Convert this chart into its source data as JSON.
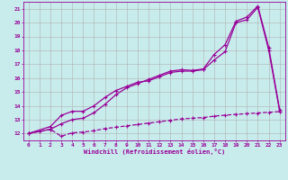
{
  "bg_color": "#c8ecec",
  "line_color": "#990099",
  "grid_color": "#b0b0b0",
  "xlabel": "Windchill (Refroidissement éolien,°C)",
  "xlim": [
    -0.5,
    23.5
  ],
  "ylim": [
    11.5,
    21.5
  ],
  "yticks": [
    12,
    13,
    14,
    15,
    16,
    17,
    18,
    19,
    20,
    21
  ],
  "xticks": [
    0,
    1,
    2,
    3,
    4,
    5,
    6,
    7,
    8,
    9,
    10,
    11,
    12,
    13,
    14,
    15,
    16,
    17,
    18,
    19,
    20,
    21,
    22,
    23
  ],
  "line1_x": [
    0,
    1,
    2,
    3,
    4,
    5,
    6,
    7,
    8,
    9,
    10,
    11,
    12,
    13,
    14,
    15,
    16,
    17,
    18,
    19,
    20,
    21,
    22,
    23
  ],
  "line1_y": [
    12.0,
    12.15,
    12.3,
    11.8,
    12.05,
    12.1,
    12.2,
    12.35,
    12.45,
    12.55,
    12.65,
    12.75,
    12.85,
    12.95,
    13.05,
    13.1,
    13.15,
    13.25,
    13.32,
    13.38,
    13.43,
    13.48,
    13.53,
    13.58
  ],
  "line2_x": [
    0,
    2,
    3,
    4,
    5,
    6,
    7,
    8,
    9,
    10,
    11,
    12,
    13,
    14,
    15,
    16,
    17,
    18,
    19,
    20,
    21,
    22,
    23
  ],
  "line2_y": [
    12.0,
    12.5,
    13.3,
    13.6,
    13.6,
    14.0,
    14.6,
    15.1,
    15.4,
    15.7,
    15.8,
    16.1,
    16.4,
    16.5,
    16.5,
    16.6,
    17.3,
    17.9,
    20.0,
    20.2,
    21.1,
    18.0,
    13.6
  ],
  "line3_x": [
    0,
    2,
    3,
    4,
    5,
    6,
    7,
    8,
    9,
    10,
    11,
    12,
    13,
    14,
    15,
    16,
    17,
    18,
    19,
    20,
    21,
    22,
    23
  ],
  "line3_y": [
    12.0,
    12.3,
    12.7,
    13.0,
    13.1,
    13.5,
    14.1,
    14.8,
    15.3,
    15.6,
    15.9,
    16.2,
    16.5,
    16.6,
    16.55,
    16.65,
    17.7,
    18.4,
    20.1,
    20.4,
    21.2,
    18.2,
    13.7
  ],
  "linewidth": 0.9,
  "markersize": 3.5
}
